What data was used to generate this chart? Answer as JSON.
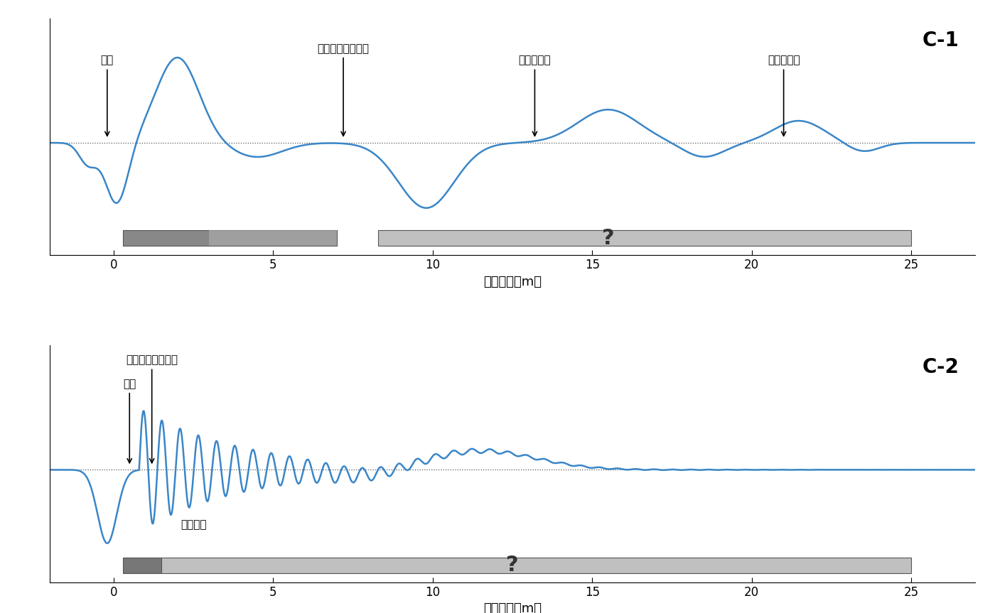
{
  "title1": "C-1",
  "title2": "C-2",
  "xlabel": "杬の長さ（m）",
  "bg_color": "#ffffff",
  "line_color": "#3a86c8",
  "line_width": 1.8,
  "dotted_color": "#555555",
  "xlim": [
    -2,
    27
  ],
  "c1_label_打撃": "打撃",
  "c1_label_損傷": "全断面に及ぶ損傷",
  "c1_label_繰返し1": "繰返し反射",
  "c1_label_繰返し2": "繰返し反射",
  "c2_label_損傷": "全断面に及ぶ損傷",
  "c2_label_打撃": "打撃",
  "c2_label_多重": "多重反射",
  "question_mark": "?",
  "bar_dark": "#888888",
  "bar_light": "#c0c0c0",
  "bar_edge": "#555555"
}
